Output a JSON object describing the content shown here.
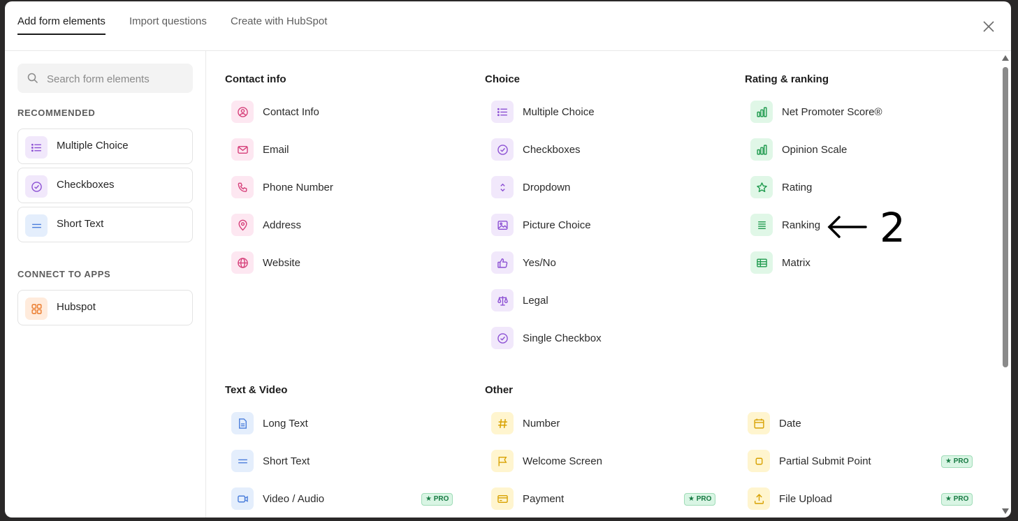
{
  "tabs": [
    {
      "label": "Add form elements",
      "active": true
    },
    {
      "label": "Import questions",
      "active": false
    },
    {
      "label": "Create with HubSpot",
      "active": false
    }
  ],
  "search": {
    "placeholder": "Search form elements"
  },
  "sidebar": {
    "recommended_heading": "RECOMMENDED",
    "recommended": [
      {
        "label": "Multiple Choice",
        "icon": "list-icon",
        "color": "purple"
      },
      {
        "label": "Checkboxes",
        "icon": "check-circle-icon",
        "color": "purple"
      },
      {
        "label": "Short Text",
        "icon": "equals-icon",
        "color": "blue"
      }
    ],
    "apps_heading": "CONNECT TO APPS",
    "apps": [
      {
        "label": "Hubspot",
        "icon": "grid-icon",
        "color": "orange"
      }
    ]
  },
  "sections": {
    "contact": {
      "title": "Contact info",
      "items": [
        {
          "label": "Contact Info",
          "icon": "user-circle-icon"
        },
        {
          "label": "Email",
          "icon": "envelope-icon"
        },
        {
          "label": "Phone Number",
          "icon": "phone-icon"
        },
        {
          "label": "Address",
          "icon": "map-pin-icon"
        },
        {
          "label": "Website",
          "icon": "globe-icon"
        }
      ]
    },
    "choice": {
      "title": "Choice",
      "items": [
        {
          "label": "Multiple Choice",
          "icon": "list-icon"
        },
        {
          "label": "Checkboxes",
          "icon": "check-circle-icon"
        },
        {
          "label": "Dropdown",
          "icon": "chevron-updown-icon"
        },
        {
          "label": "Picture Choice",
          "icon": "image-icon"
        },
        {
          "label": "Yes/No",
          "icon": "thumbs-up-icon"
        },
        {
          "label": "Legal",
          "icon": "scale-icon"
        },
        {
          "label": "Single Checkbox",
          "icon": "check-circle-icon"
        }
      ]
    },
    "rating": {
      "title": "Rating & ranking",
      "items": [
        {
          "label": "Net Promoter Score®",
          "icon": "bar-chart-icon"
        },
        {
          "label": "Opinion Scale",
          "icon": "bar-chart-icon"
        },
        {
          "label": "Rating",
          "icon": "star-icon"
        },
        {
          "label": "Ranking",
          "icon": "lines-icon"
        },
        {
          "label": "Matrix",
          "icon": "table-icon"
        }
      ]
    },
    "text_video": {
      "title": "Text & Video",
      "items": [
        {
          "label": "Long Text",
          "icon": "document-icon"
        },
        {
          "label": "Short Text",
          "icon": "equals-icon"
        },
        {
          "label": "Video / Audio",
          "icon": "video-icon",
          "badge": "★ PRO"
        }
      ]
    },
    "other": {
      "title": "Other",
      "items": [
        {
          "label": "Number",
          "icon": "hash-icon"
        },
        {
          "label": "Welcome Screen",
          "icon": "flag-icon"
        },
        {
          "label": "Payment",
          "icon": "credit-card-icon",
          "badge": "★ PRO"
        }
      ]
    },
    "other2": {
      "items": [
        {
          "label": "Date",
          "icon": "calendar-icon"
        },
        {
          "label": "Partial Submit Point",
          "icon": "square-icon",
          "badge": "★ PRO"
        },
        {
          "label": "File Upload",
          "icon": "upload-icon",
          "badge": "★ PRO"
        }
      ]
    }
  },
  "annotation": {
    "arrow": "←",
    "number": "2"
  }
}
